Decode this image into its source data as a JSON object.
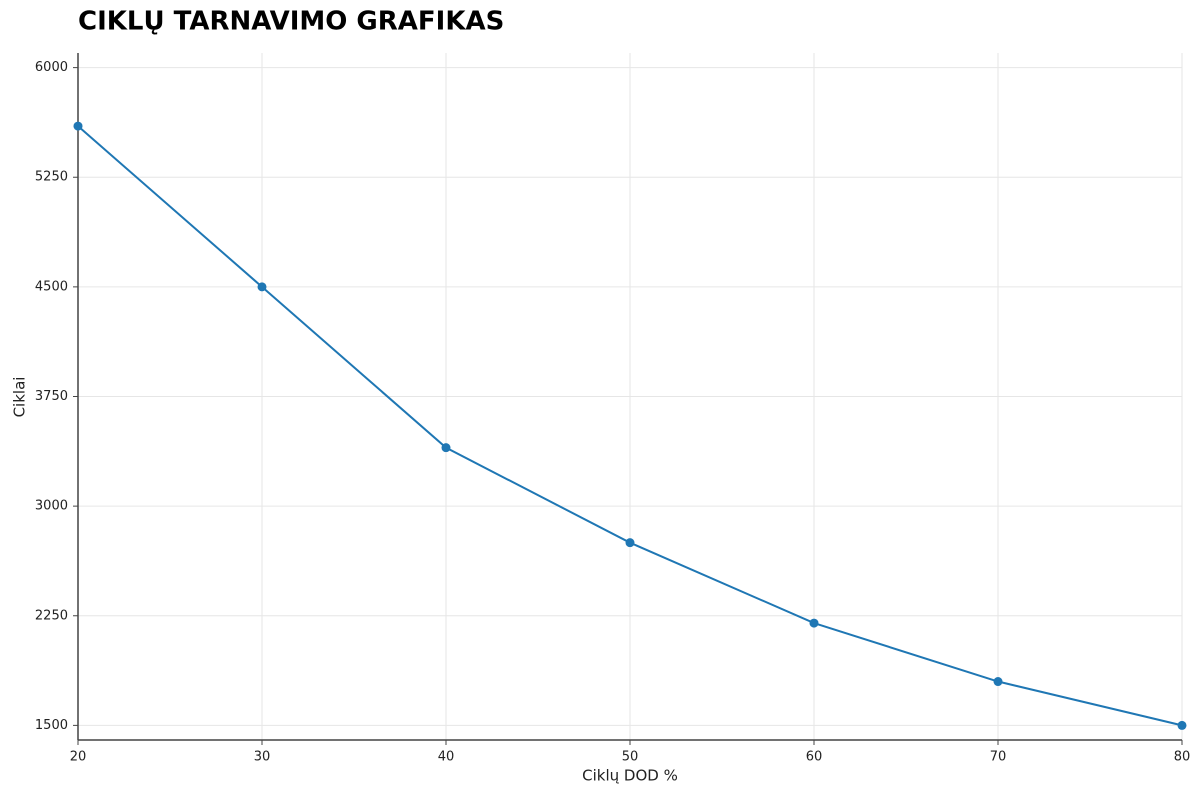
{
  "chart_data": {
    "type": "line",
    "title": "CIKLŲ TARNAVIMO GRAFIKAS",
    "x_label": "Ciklų DOD %",
    "y_label": "Ciklai",
    "x": [
      20,
      30,
      40,
      50,
      60,
      70,
      80
    ],
    "series": [
      {
        "name": "Ciklai",
        "color": "#1f77b4",
        "values": [
          5600,
          4500,
          3400,
          2750,
          2200,
          1800,
          1500
        ]
      }
    ],
    "xlim": [
      20,
      80
    ],
    "xticks": [
      20,
      30,
      40,
      50,
      60,
      70,
      80
    ],
    "ylim": [
      1400,
      6100
    ],
    "yticks": [
      1500,
      2250,
      3000,
      3750,
      4500,
      5250,
      6000
    ],
    "grid": true
  }
}
